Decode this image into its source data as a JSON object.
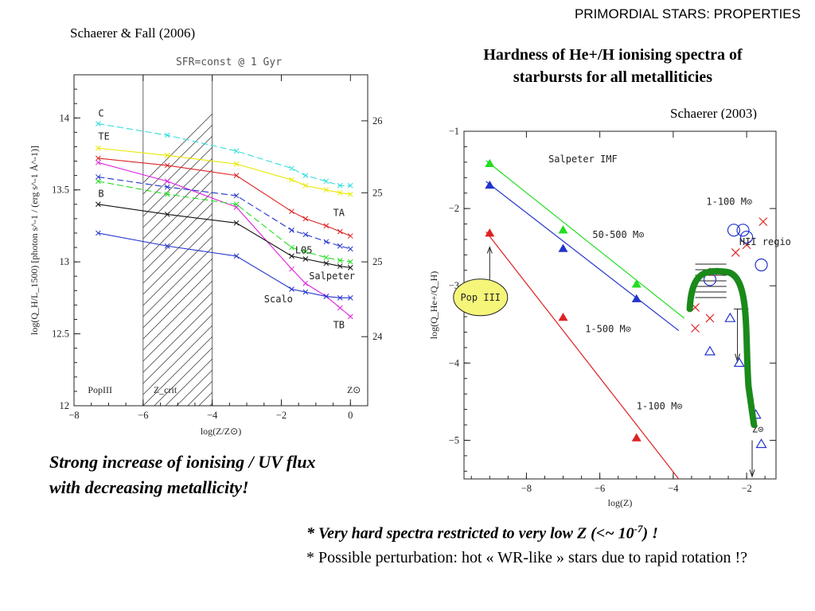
{
  "slide_title": "PRIMORDIAL STARS: PROPERTIES",
  "left_citation": "Schaerer & Fall (2006)",
  "right_title_line1": "Hardness of He+/H ionising spectra of",
  "right_title_line2": "starbursts for all metalliticies",
  "right_citation": "Schaerer (2003)",
  "caption_line1": "Strong increase of ionising / UV flux",
  "caption_line2": "with decreasing metallicity!",
  "note1_main": "* Very hard spectra restricted to very low Z (<~ 10",
  "note1_exp": "-7",
  "note1_end": ") !",
  "note2": "* Possible perturbation: hot « WR-like » stars due to rapid rotation !?",
  "colors": {
    "cyan": "#33dddd",
    "yellow": "#e8e800",
    "red": "#dd2222",
    "magenta": "#dd22dd",
    "green": "#22dd22",
    "blue": "#2233cc",
    "black": "#111111",
    "pop3_fill": "#f5f57a",
    "thick_green": "#1a8a1a"
  },
  "chart_data": [
    {
      "type": "line",
      "title": "SFR=const @ 1 Gyr",
      "xlabel": "log(Z/Z⊙)",
      "ylabel": "log(Q_H/L_1500) [photon s^-1 / (erg s^-1 Å^-1)]",
      "xlim": [
        -8,
        0.5
      ],
      "ylim": [
        12,
        14.3
      ],
      "xticks": [
        "−8",
        "−6",
        "−4",
        "−2",
        "0"
      ],
      "yticks": [
        "12",
        "12.5",
        "13",
        "13.5",
        "14"
      ],
      "y2ticks": [
        "24.5",
        "25",
        "25.5",
        "26"
      ],
      "hatched_region": [
        -6,
        -4
      ],
      "region_labels": [
        "PopIII",
        "Z_crit",
        "Z⊙"
      ],
      "series": [
        {
          "name": "C",
          "color": "cyan",
          "dash": true,
          "x": [
            -7.3,
            -5.3,
            -3.3,
            -1.7,
            -1.3,
            -0.7,
            -0.3,
            0.0
          ],
          "y": [
            13.96,
            13.88,
            13.77,
            13.65,
            13.6,
            13.56,
            13.53,
            13.53
          ]
        },
        {
          "name": "TE",
          "color": "yellow",
          "dash": false,
          "x": [
            -7.3,
            -5.3,
            -3.3,
            -1.7,
            -1.3,
            -0.7,
            -0.3,
            0.0
          ],
          "y": [
            13.79,
            13.74,
            13.68,
            13.57,
            13.53,
            13.5,
            13.48,
            13.47
          ]
        },
        {
          "name": "TA",
          "color": "red",
          "dash": false,
          "x": [
            -7.3,
            -5.3,
            -3.3,
            -1.7,
            -1.3,
            -0.7,
            -0.3,
            0.0
          ],
          "y": [
            13.72,
            13.67,
            13.6,
            13.35,
            13.3,
            13.25,
            13.21,
            13.18
          ]
        },
        {
          "name": "",
          "color": "magenta",
          "dash": false,
          "x": [
            -7.3,
            -5.3,
            -3.3,
            -1.7,
            -1.3,
            -0.7,
            -0.3,
            0.0
          ],
          "y": [
            13.69,
            13.56,
            13.38,
            12.95,
            12.85,
            12.76,
            12.68,
            12.62
          ]
        },
        {
          "name": "",
          "color": "green",
          "dash": true,
          "x": [
            -7.3,
            -5.3,
            -3.3,
            -1.7,
            -1.3,
            -0.7,
            -0.3,
            0.0
          ],
          "y": [
            13.56,
            13.47,
            13.4,
            13.1,
            13.07,
            13.03,
            13.01,
            13.0
          ]
        },
        {
          "name": "L05",
          "color": "blue",
          "dash": true,
          "x": [
            -7.3,
            -5.3,
            -3.3,
            -1.7,
            -1.3,
            -0.7,
            -0.3,
            0.0
          ],
          "y": [
            13.59,
            13.52,
            13.46,
            13.22,
            13.19,
            13.14,
            13.11,
            13.09
          ]
        },
        {
          "name": "B",
          "color": "black",
          "dash": false,
          "x": [
            -7.3,
            -5.3,
            -3.3,
            -1.7,
            -1.3,
            -0.7,
            -0.3,
            0.0
          ],
          "y": [
            13.4,
            13.33,
            13.27,
            13.04,
            13.02,
            12.99,
            12.97,
            12.96
          ]
        },
        {
          "name": "Scalo",
          "color": "blue",
          "dash": false,
          "x": [
            -7.3,
            -5.3,
            -3.3,
            -1.7,
            -1.3,
            -0.7,
            -0.3,
            0.0
          ],
          "y": [
            13.2,
            13.11,
            13.04,
            12.81,
            12.79,
            12.76,
            12.75,
            12.75
          ]
        }
      ],
      "curve_labels": [
        {
          "text": "C",
          "x": -7.3,
          "y": 14.01
        },
        {
          "text": "TE",
          "x": -7.3,
          "y": 13.85
        },
        {
          "text": "B",
          "x": -7.3,
          "y": 13.45
        },
        {
          "text": "TA",
          "x": -0.5,
          "y": 13.32
        },
        {
          "text": "L05",
          "x": -1.6,
          "y": 13.06
        },
        {
          "text": "Salpeter",
          "x": -1.2,
          "y": 12.88
        },
        {
          "text": "Scalo",
          "x": -2.5,
          "y": 12.72
        },
        {
          "text": "TB",
          "x": -0.5,
          "y": 12.54
        }
      ]
    },
    {
      "type": "scatter",
      "title": "Salpeter IMF",
      "xlabel": "log(Z)",
      "ylabel": "log(Q_He+/Q_H)",
      "xlim": [
        -9.7,
        -1.2
      ],
      "ylim": [
        -5.5,
        -1
      ],
      "xticks": [
        "−8",
        "−6",
        "−4",
        "−2"
      ],
      "yticks": [
        "−1",
        "−2",
        "−3",
        "−4",
        "−5"
      ],
      "lines": [
        {
          "name": "50-500 M⊙",
          "color": "green",
          "x": [
            -9.1,
            -3.7
          ],
          "y": [
            -1.38,
            -3.42
          ]
        },
        {
          "name": "1-500 M⊙",
          "color": "blue",
          "x": [
            -9.1,
            -3.85
          ],
          "y": [
            -1.65,
            -3.58
          ]
        },
        {
          "name": "1-100 M⊙",
          "color": "red",
          "x": [
            -9.1,
            -3.85
          ],
          "y": [
            -2.3,
            -5.5
          ]
        }
      ],
      "points": [
        {
          "color": "green",
          "marker": "triangle",
          "filled": true,
          "x": [
            -9.0,
            -7.0,
            -5.0
          ],
          "y": [
            -1.42,
            -2.28,
            -2.98
          ]
        },
        {
          "color": "blue",
          "marker": "triangle",
          "filled": true,
          "x": [
            -9.0,
            -7.0,
            -5.0
          ],
          "y": [
            -1.7,
            -2.52,
            -3.17
          ]
        },
        {
          "color": "red",
          "marker": "triangle",
          "filled": true,
          "x": [
            -9.0,
            -7.0,
            -5.0
          ],
          "y": [
            -2.32,
            -3.41,
            -4.97
          ]
        }
      ],
      "observations": {
        "red_x": {
          "x": [
            -3.4,
            -3.0,
            -2.3,
            -2.0,
            -1.55,
            -3.4,
            -2.9
          ],
          "y": [
            -3.28,
            -3.42,
            -2.57,
            -2.47,
            -2.17,
            -3.55,
            -2.82
          ]
        },
        "blue_circle": {
          "x": [
            -3.0,
            -2.1,
            -2.35,
            -1.6,
            -2.0
          ],
          "y": [
            -2.92,
            -2.28,
            -2.28,
            -2.73,
            -2.37
          ]
        },
        "blue_triangle": {
          "x": [
            -3.0,
            -2.45,
            -2.2,
            -1.75,
            -1.6
          ],
          "y": [
            -3.85,
            -3.42,
            -4.0,
            -4.67,
            -5.05
          ]
        }
      },
      "labels": [
        {
          "text": "1-100 M⊙",
          "color": "red",
          "x": -3.1,
          "y": -1.95
        },
        {
          "text": "HII regions",
          "color": "black",
          "x": -2.2,
          "y": -2.47
        },
        {
          "text": "50-500 M⊙",
          "color": "green",
          "x": -6.2,
          "y": -2.38
        },
        {
          "text": "1-500 M⊙",
          "color": "blue",
          "x": -6.4,
          "y": -3.6
        },
        {
          "text": "1-100 M⊙",
          "color": "red",
          "x": -5.0,
          "y": -4.6
        },
        {
          "text": "Z⊙",
          "color": "black",
          "x": -1.85,
          "y": -4.9
        }
      ],
      "callout": "Pop III"
    }
  ]
}
